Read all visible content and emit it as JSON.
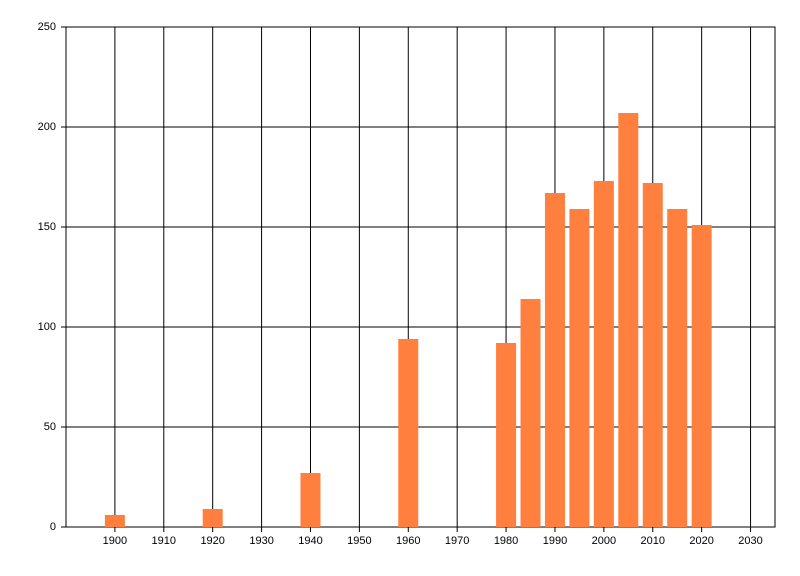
{
  "chart_data": {
    "type": "bar",
    "x": [
      1900,
      1920,
      1940,
      1960,
      1980,
      1985,
      1990,
      1995,
      2000,
      2005,
      2010,
      2015,
      2020
    ],
    "values": [
      6,
      9,
      27,
      94,
      92,
      114,
      167,
      159,
      173,
      207,
      172,
      159,
      151
    ],
    "color": "#ff7f3f",
    "xlim": [
      1890,
      2035
    ],
    "xticks": [
      1900,
      1910,
      1920,
      1930,
      1940,
      1950,
      1960,
      1970,
      1980,
      1990,
      2000,
      2010,
      2020,
      2030
    ],
    "ylim": [
      0,
      250
    ],
    "yticks": [
      0,
      50,
      100,
      150,
      200,
      250
    ],
    "grid": true
  }
}
